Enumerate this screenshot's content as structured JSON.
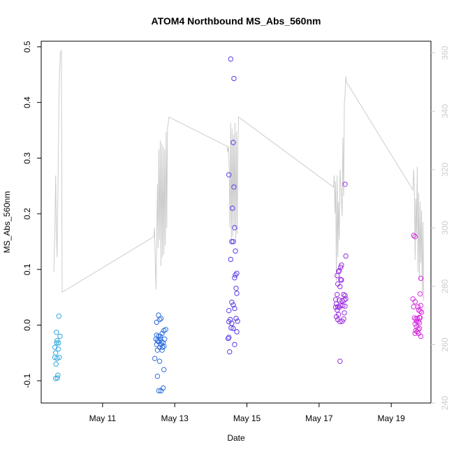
{
  "chart_data": {
    "type": "scatter",
    "title": "ATOM4 Northbound MS_Abs_560nm",
    "xlabel": "Date",
    "ylabel": "MS_Abs_560nm",
    "x_ticks": [
      "May 11",
      "May 13",
      "May 15",
      "May 17",
      "May 19"
    ],
    "x_tick_days": [
      11,
      13,
      15,
      17,
      19
    ],
    "xlim_days": [
      9.3,
      20.1
    ],
    "ylim": [
      -0.14,
      0.51
    ],
    "y_ticks": [
      -0.1,
      0.0,
      0.1,
      0.2,
      0.3,
      0.4,
      0.5
    ],
    "y_tick_labels": [
      "-0.1",
      "0.0",
      "0.1",
      "0.2",
      "0.3",
      "0.4",
      "0.5"
    ],
    "y2lim": [
      240,
      364
    ],
    "y2_ticks": [
      240,
      260,
      280,
      300,
      320,
      340,
      360
    ],
    "y2_tick_labels": [
      "240",
      "260",
      "280",
      "300",
      "320",
      "340",
      "360"
    ],
    "grid": false,
    "legend": "none",
    "series": [
      {
        "color": "#2fa8e0",
        "points": [
          [
            9.72,
            -0.013
          ],
          [
            9.68,
            -0.04
          ],
          [
            9.7,
            -0.05
          ],
          [
            9.74,
            -0.028
          ],
          [
            9.78,
            -0.032
          ],
          [
            9.82,
            -0.02
          ],
          [
            9.68,
            -0.058
          ],
          [
            9.74,
            -0.06
          ],
          [
            9.8,
            -0.058
          ],
          [
            9.71,
            -0.07
          ],
          [
            9.76,
            -0.09
          ],
          [
            9.7,
            -0.096
          ],
          [
            9.75,
            -0.095
          ],
          [
            9.79,
            0.016
          ],
          [
            9.73,
            -0.032
          ],
          [
            9.77,
            -0.043
          ]
        ]
      },
      {
        "color": "#2e6fe0",
        "points": [
          [
            12.5,
            0.005
          ],
          [
            12.55,
            0.018
          ],
          [
            12.62,
            0.012
          ],
          [
            12.58,
            0.01
          ],
          [
            12.5,
            -0.018
          ],
          [
            12.55,
            -0.02
          ],
          [
            12.6,
            -0.02
          ],
          [
            12.65,
            -0.015
          ],
          [
            12.7,
            -0.01
          ],
          [
            12.75,
            -0.008
          ],
          [
            12.48,
            -0.025
          ],
          [
            12.52,
            -0.028
          ],
          [
            12.56,
            -0.03
          ],
          [
            12.6,
            -0.025
          ],
          [
            12.64,
            -0.03
          ],
          [
            12.68,
            -0.032
          ],
          [
            12.72,
            -0.025
          ],
          [
            12.5,
            -0.035
          ],
          [
            12.55,
            -0.03
          ],
          [
            12.62,
            -0.035
          ],
          [
            12.66,
            -0.04
          ],
          [
            12.7,
            -0.038
          ],
          [
            12.52,
            -0.045
          ],
          [
            12.58,
            -0.04
          ],
          [
            12.65,
            -0.045
          ],
          [
            12.45,
            -0.06
          ],
          [
            12.58,
            -0.065
          ],
          [
            12.7,
            -0.08
          ],
          [
            12.52,
            -0.092
          ],
          [
            12.56,
            -0.118
          ],
          [
            12.62,
            -0.118
          ],
          [
            12.68,
            -0.113
          ]
        ]
      },
      {
        "color": "#5a3ce8",
        "points": [
          [
            14.55,
            0.478
          ],
          [
            14.64,
            0.443
          ],
          [
            14.62,
            0.328
          ],
          [
            14.5,
            0.27
          ],
          [
            14.64,
            0.248
          ],
          [
            14.6,
            0.21
          ],
          [
            14.66,
            0.175
          ],
          [
            14.58,
            0.15
          ],
          [
            14.62,
            0.15
          ],
          [
            14.68,
            0.133
          ],
          [
            14.55,
            0.118
          ],
          [
            14.68,
            0.09
          ],
          [
            14.66,
            0.085
          ],
          [
            14.72,
            0.093
          ],
          [
            14.7,
            0.066
          ],
          [
            14.72,
            0.057
          ],
          [
            14.58,
            0.041
          ],
          [
            14.62,
            0.036
          ],
          [
            14.66,
            0.03
          ],
          [
            14.5,
            0.026
          ],
          [
            14.54,
            0.01
          ],
          [
            14.58,
            0.003
          ],
          [
            14.5,
            0.006
          ],
          [
            14.56,
            -0.005
          ],
          [
            14.62,
            -0.006
          ],
          [
            14.7,
            0.012
          ],
          [
            14.74,
            0.007
          ],
          [
            14.72,
            -0.012
          ],
          [
            14.5,
            -0.022
          ],
          [
            14.48,
            -0.024
          ],
          [
            14.66,
            -0.035
          ],
          [
            14.52,
            -0.048
          ]
        ]
      },
      {
        "color": "#9a2ee0",
        "points": [
          [
            17.72,
            0.253
          ],
          [
            17.74,
            0.124
          ],
          [
            17.62,
            0.108
          ],
          [
            17.56,
            0.098
          ],
          [
            17.6,
            0.104
          ],
          [
            17.54,
            0.096
          ],
          [
            17.5,
            0.089
          ],
          [
            17.6,
            0.082
          ],
          [
            17.62,
            0.081
          ],
          [
            17.52,
            0.074
          ],
          [
            17.58,
            0.069
          ],
          [
            17.5,
            0.055
          ],
          [
            17.68,
            0.055
          ],
          [
            17.72,
            0.053
          ],
          [
            17.46,
            0.046
          ],
          [
            17.56,
            0.045
          ],
          [
            17.64,
            0.044
          ],
          [
            17.7,
            0.045
          ],
          [
            17.74,
            0.047
          ],
          [
            17.48,
            0.038
          ],
          [
            17.52,
            0.033
          ],
          [
            17.56,
            0.032
          ],
          [
            17.6,
            0.035
          ],
          [
            17.66,
            0.035
          ],
          [
            17.72,
            0.034
          ],
          [
            17.46,
            0.032
          ],
          [
            17.5,
            0.027
          ],
          [
            17.54,
            0.019
          ],
          [
            17.48,
            0.015
          ],
          [
            17.52,
            0.01
          ],
          [
            17.58,
            0.006
          ],
          [
            17.64,
            0.007
          ],
          [
            17.68,
            0.011
          ],
          [
            17.7,
            0.022
          ],
          [
            17.58,
            -0.065
          ]
        ]
      },
      {
        "color": "#d62ee0",
        "points": [
          [
            19.62,
            0.161
          ],
          [
            19.66,
            0.159
          ],
          [
            19.82,
            0.084
          ],
          [
            19.8,
            0.056
          ],
          [
            19.6,
            0.047
          ],
          [
            19.66,
            0.042
          ],
          [
            19.74,
            0.033
          ],
          [
            19.82,
            0.035
          ],
          [
            19.76,
            0.027
          ],
          [
            19.8,
            0.025
          ],
          [
            19.84,
            0.023
          ],
          [
            19.62,
            0.033
          ],
          [
            19.64,
            0.013
          ],
          [
            19.68,
            0.011
          ],
          [
            19.72,
            0.012
          ],
          [
            19.78,
            0.014
          ],
          [
            19.8,
            0.013
          ],
          [
            19.7,
            0.007
          ],
          [
            19.74,
            0.006
          ],
          [
            19.78,
            0.004
          ],
          [
            19.66,
            0.002
          ],
          [
            19.7,
            -0.003
          ],
          [
            19.74,
            -0.007
          ],
          [
            19.78,
            -0.006
          ],
          [
            19.68,
            -0.01
          ],
          [
            19.72,
            -0.012
          ],
          [
            19.76,
            -0.015
          ],
          [
            19.66,
            -0.015
          ],
          [
            19.82,
            -0.02
          ]
        ]
      }
    ],
    "line_series": {
      "color": "#cccccc",
      "axis": "y2",
      "points": [
        [
          9.65,
          285
        ],
        [
          9.68,
          300
        ],
        [
          9.7,
          318
        ],
        [
          9.72,
          300
        ],
        [
          9.74,
          290
        ],
        [
          9.76,
          310
        ],
        [
          9.78,
          330
        ],
        [
          9.8,
          350
        ],
        [
          9.83,
          360
        ],
        [
          9.86,
          361
        ],
        [
          9.88,
          278
        ],
        [
          12.42,
          297
        ],
        [
          12.44,
          300
        ],
        [
          12.46,
          289
        ],
        [
          12.48,
          279
        ],
        [
          12.5,
          296
        ],
        [
          12.52,
          315
        ],
        [
          12.54,
          293
        ],
        [
          12.56,
          327
        ],
        [
          12.58,
          296
        ],
        [
          12.6,
          330
        ],
        [
          12.62,
          287
        ],
        [
          12.64,
          329
        ],
        [
          12.66,
          290
        ],
        [
          12.68,
          328
        ],
        [
          12.7,
          291
        ],
        [
          12.72,
          327
        ],
        [
          12.74,
          294
        ],
        [
          12.76,
          333
        ],
        [
          12.78,
          300
        ],
        [
          12.8,
          334
        ],
        [
          12.84,
          338
        ],
        [
          14.45,
          328
        ],
        [
          14.47,
          326
        ],
        [
          14.49,
          328
        ],
        [
          14.51,
          320
        ],
        [
          14.53,
          300
        ],
        [
          14.55,
          336
        ],
        [
          14.57,
          296
        ],
        [
          14.59,
          334
        ],
        [
          14.61,
          297
        ],
        [
          14.63,
          332
        ],
        [
          14.65,
          300
        ],
        [
          14.67,
          336
        ],
        [
          14.69,
          295
        ],
        [
          14.71,
          333
        ],
        [
          14.73,
          298
        ],
        [
          14.75,
          329
        ],
        [
          14.77,
          338
        ],
        [
          17.4,
          314
        ],
        [
          17.42,
          318
        ],
        [
          17.44,
          305
        ],
        [
          17.46,
          316
        ],
        [
          17.48,
          282
        ],
        [
          17.5,
          318
        ],
        [
          17.52,
          290
        ],
        [
          17.54,
          309
        ],
        [
          17.56,
          296
        ],
        [
          17.58,
          320
        ],
        [
          17.62,
          310
        ],
        [
          17.64,
          304
        ],
        [
          17.66,
          331
        ],
        [
          17.68,
          311
        ],
        [
          17.7,
          343
        ],
        [
          17.72,
          345
        ],
        [
          17.74,
          352
        ],
        [
          17.76,
          350
        ],
        [
          19.6,
          313
        ],
        [
          19.62,
          320
        ],
        [
          19.64,
          314
        ],
        [
          19.66,
          289
        ],
        [
          19.68,
          310
        ],
        [
          19.7,
          297
        ],
        [
          19.72,
          321
        ],
        [
          19.74,
          285
        ],
        [
          19.76,
          312
        ],
        [
          19.78,
          282
        ],
        [
          19.8,
          309
        ],
        [
          19.82,
          288
        ],
        [
          19.84,
          306
        ],
        [
          19.86,
          276
        ],
        [
          19.88,
          302
        ],
        [
          19.9,
          275
        ]
      ]
    }
  }
}
